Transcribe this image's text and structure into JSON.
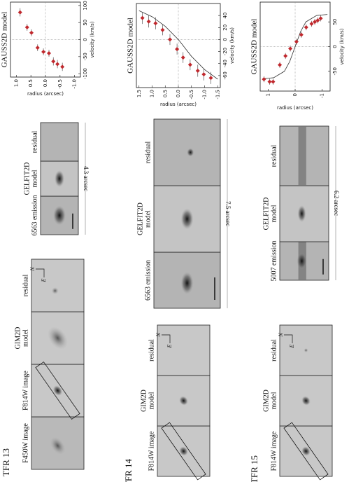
{
  "panels": [
    {
      "label": "TFR 13",
      "images": [
        "F450W image",
        "F814W image",
        [
          "GIM2D",
          "model"
        ],
        "residual"
      ],
      "compass": [
        "N",
        "E"
      ],
      "spectra": [
        "6563 emission",
        [
          "GELFIT2D",
          "model"
        ],
        "residual"
      ],
      "scale": "4.3 arcsec"
    },
    {
      "label": "TFR 14",
      "images": [
        "F814W image",
        [
          "GIM2D",
          "model"
        ],
        "residual"
      ],
      "compass": [
        "N",
        "E"
      ],
      "spectra": [
        "6563 emission",
        [
          "GELFIT2D",
          "model"
        ],
        "residual"
      ],
      "scale": "7.5 arcsec"
    },
    {
      "label": "TFR 15",
      "images": [
        "F814W image",
        [
          "GIM2D",
          "model"
        ],
        "residual"
      ],
      "compass": [
        "N",
        "E"
      ],
      "spectra": [
        "5007 emission",
        [
          "GELFIT2D",
          "model"
        ],
        "residual"
      ],
      "scale": "6.2 arcsec"
    }
  ],
  "chart_data": [
    {
      "type": "scatter",
      "title": "GAUSS2D model",
      "x_label": "radius (arcsec)",
      "y_label": "velocity (km/s)",
      "color": "#c0282d",
      "x": [
        0.87,
        0.63,
        0.48,
        0.27,
        0.07,
        -0.12,
        -0.27,
        -0.41,
        -0.58
      ],
      "values": [
        80,
        36,
        20,
        -24,
        -36,
        -40,
        -64,
        -72,
        -80
      ],
      "errors": [
        12,
        10,
        10,
        10,
        10,
        10,
        12,
        12,
        12
      ],
      "xlim": [
        1.2,
        -1.2
      ],
      "xticks": [
        {
          "value": 1.0,
          "label": "1.0"
        },
        {
          "value": 0.5,
          "label": "0.5"
        },
        {
          "value": 0.0,
          "label": "0.0"
        },
        {
          "value": -0.5,
          "label": "-0.5"
        },
        {
          "value": -1.0,
          "label": "-1.0"
        }
      ],
      "ylim": [
        -110,
        110
      ],
      "yticks": [
        -100,
        -50,
        0,
        50,
        100
      ]
    },
    {
      "type": "scatter",
      "title": "GAUSS2D model",
      "x_label": "radius (arcsec)",
      "y_label": "velocity (km/s)",
      "color": "#c0282d",
      "x": [
        1.37,
        1.13,
        0.87,
        0.6,
        0.32,
        0.05,
        -0.18,
        -0.45,
        -0.74,
        -0.97,
        -1.24
      ],
      "values": [
        36,
        30,
        27,
        16,
        0,
        -16,
        -30,
        -42,
        -52,
        -58,
        -64
      ],
      "errors": [
        10,
        10,
        10,
        9,
        9,
        9,
        9,
        9,
        10,
        10,
        10
      ],
      "model": {
        "x": [
          1.5,
          1.0,
          0.5,
          0.0,
          -0.5,
          -1.0,
          -1.5
        ],
        "values": [
          48,
          38,
          22,
          0,
          -28,
          -50,
          -66
        ]
      },
      "xlim": [
        1.6,
        -1.6
      ],
      "xticks": [
        {
          "value": 1.5,
          "label": "1.5"
        },
        {
          "value": 1.0,
          "label": "1.0"
        },
        {
          "value": 0.5,
          "label": "0.5"
        },
        {
          "value": 0.0,
          "label": "0.0"
        },
        {
          "value": -0.5,
          "label": "-0.5"
        },
        {
          "value": -1.0,
          "label": "-1.0"
        },
        {
          "value": -1.5,
          "label": "-1.5"
        }
      ],
      "ylim": [
        -80,
        60
      ],
      "yticks": [
        -60,
        -40,
        -20,
        0,
        20,
        40
      ]
    },
    {
      "type": "scatter",
      "title": "GAUSS2D model",
      "x_label": "radius (arcsec)",
      "y_label": "velocity (km/s)",
      "color": "#c0282d",
      "x": [
        1.16,
        0.95,
        0.82,
        0.57,
        0.36,
        0.18,
        -0.05,
        -0.23,
        -0.41,
        -0.61,
        -0.73,
        -0.84,
        -0.95
      ],
      "values": [
        -66,
        -71,
        -71,
        -37,
        -19,
        -4,
        10,
        24,
        39,
        46,
        50,
        53,
        57
      ],
      "errors": [
        6,
        6,
        6,
        6,
        6,
        6,
        6,
        6,
        6,
        6,
        6,
        6,
        6
      ],
      "model": {
        "x": [
          1.2,
          0.8,
          0.4,
          0.2,
          0.0,
          -0.2,
          -0.4,
          -0.8,
          -1.2
        ],
        "values": [
          -65,
          -63,
          -50,
          -30,
          0,
          30,
          50,
          63,
          65
        ]
      },
      "xlim": [
        1.3,
        -1.3
      ],
      "xticks": [
        1,
        0,
        -1
      ],
      "ylim": [
        -90,
        90
      ],
      "yticks": [
        -50,
        0,
        50
      ]
    }
  ]
}
